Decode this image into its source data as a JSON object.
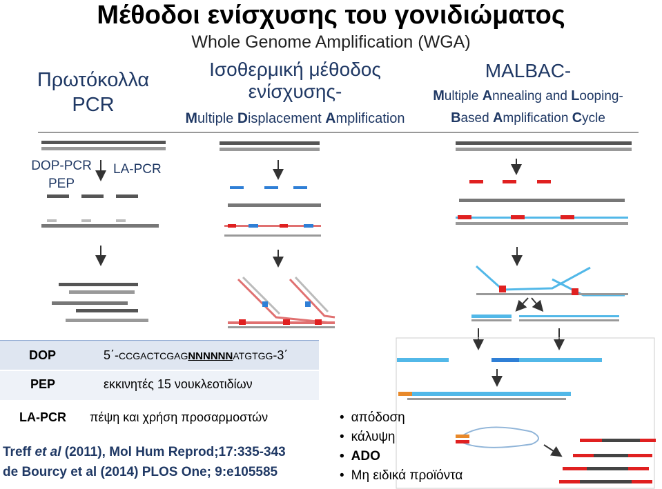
{
  "title": "Μέθοδοι ενίσχυσης του γονιδιώματος",
  "subtitle": "Whole Genome Amplification (WGA)",
  "columns": {
    "pcr": {
      "line1": "Πρωτόκολλα",
      "line2": "PCR"
    },
    "isothermal": {
      "line1": "Ισοθερμική μέθοδος",
      "line2": "ενίσχυσης-",
      "acronym_words": [
        {
          "initial": "M",
          "rest": "ultiple "
        },
        {
          "initial": "D",
          "rest": "isplacement "
        },
        {
          "initial": "A",
          "rest": "mplification"
        }
      ]
    },
    "malbac": {
      "heading": "MALBAC-",
      "line1_words": [
        {
          "initial": "M",
          "rest": "ultiple "
        },
        {
          "initial": "A",
          "rest": "nnealing and "
        },
        {
          "initial": "L",
          "rest": "ooping-"
        }
      ],
      "line2_words": [
        {
          "initial": "B",
          "rest": "ased "
        },
        {
          "initial": "A",
          "rest": "mplification "
        },
        {
          "initial": "C",
          "rest": "ycle"
        }
      ]
    }
  },
  "pcr_labels": {
    "dop_pcr": "DOP-PCR",
    "pep": "PEP",
    "la_pcr": "LA-PCR"
  },
  "table": {
    "rows": [
      {
        "label": "DOP",
        "seq_prefix": "5΄-",
        "seq_a": "CCGACTCGAG",
        "seq_n": "NNNNNN",
        "seq_b": "ATGTGG",
        "seq_suffix": "-3΄"
      },
      {
        "label": "PEP",
        "text": "εκκινητές 15 νουκλεοτιδίων"
      },
      {
        "label": "LA-PCR",
        "text": "πέψη και χρήση προσαρμοστών"
      }
    ]
  },
  "references": [
    {
      "before": "Treff ",
      "italic": "et al ",
      "after": "(2011), Mol Hum Reprod;17:335-343"
    },
    {
      "before": "de Bourcy et al (2014) PLOS One; 9:e105585",
      "italic": "",
      "after": ""
    }
  ],
  "bullets": [
    "απόδοση",
    "κάλυψη",
    "ADO",
    "Μη ειδικά προϊόντα"
  ],
  "colors": {
    "heading": "#1f3864",
    "strand": "#555555",
    "primer_red": "#e02020",
    "primer_blue": "#2f7fd6",
    "new_strand_blue": "#52b8e8",
    "table_dark": "#dfe6f1",
    "table_light": "#eef2f8",
    "adapter_orange": "#e8892a"
  }
}
